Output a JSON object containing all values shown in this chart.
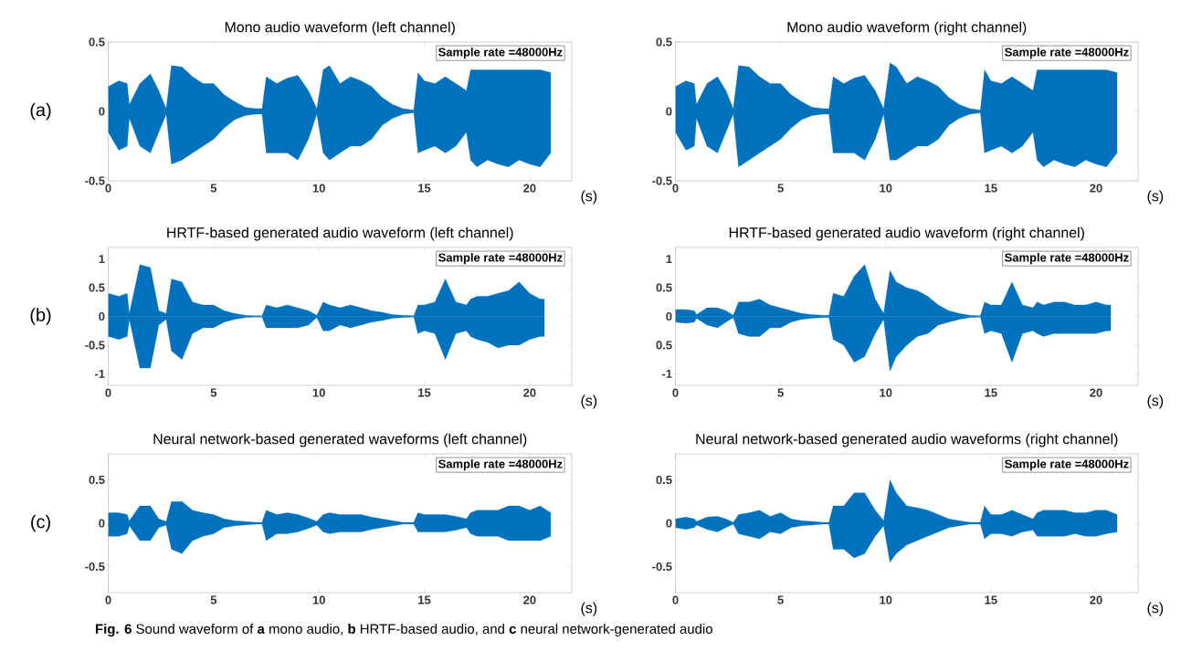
{
  "chart_data": [
    {
      "type": "area",
      "title": "Mono audio waveform (left channel)",
      "xlabel": "(s)",
      "annotations": [
        "Sample rate =48000Hz",
        "(a)"
      ],
      "x": [
        0,
        0.5,
        0.9,
        1,
        1.5,
        2,
        2.4,
        2.75,
        3,
        3.5,
        4,
        4.5,
        5,
        5.5,
        6,
        6.5,
        7,
        7.3,
        7.5,
        8,
        8.5,
        9,
        9.5,
        9.9,
        10.2,
        10.5,
        11,
        11.5,
        12,
        12.5,
        13,
        13.5,
        14,
        14.5,
        14.7,
        15,
        15.5,
        16,
        16.5,
        17,
        17.2,
        17.5,
        18,
        18.5,
        19,
        19.5,
        20,
        20.5,
        21
      ],
      "series": [
        {
          "color": "#0072bd",
          "values": [
            0.18,
            0.22,
            0.2,
            0.05,
            0.2,
            0.27,
            0.15,
            0.02,
            0.33,
            0.32,
            0.25,
            0.2,
            0.2,
            0.12,
            0.07,
            0.03,
            0.02,
            0.02,
            0.25,
            0.2,
            0.24,
            0.26,
            0.15,
            0.02,
            0.3,
            0.33,
            0.2,
            0.25,
            0.22,
            0.18,
            0.1,
            0.05,
            0.02,
            0.01,
            0.28,
            0.22,
            0.2,
            0.25,
            0.2,
            0.15,
            0.3,
            0.3,
            0.3,
            0.3,
            0.3,
            0.3,
            0.3,
            0.3,
            0.28
          ]
        },
        {
          "color": "#0072bd",
          "values": [
            -0.15,
            -0.28,
            -0.25,
            -0.05,
            -0.25,
            -0.3,
            -0.15,
            -0.02,
            -0.38,
            -0.35,
            -0.3,
            -0.25,
            -0.2,
            -0.12,
            -0.06,
            -0.03,
            -0.02,
            -0.02,
            -0.3,
            -0.3,
            -0.3,
            -0.35,
            -0.2,
            -0.02,
            -0.3,
            -0.35,
            -0.3,
            -0.25,
            -0.25,
            -0.2,
            -0.1,
            -0.05,
            -0.02,
            -0.01,
            -0.3,
            -0.28,
            -0.25,
            -0.3,
            -0.25,
            -0.15,
            -0.35,
            -0.4,
            -0.35,
            -0.38,
            -0.4,
            -0.35,
            -0.38,
            -0.4,
            -0.3
          ]
        }
      ],
      "xlim": [
        0,
        22
      ],
      "ylim": [
        -0.5,
        0.5
      ],
      "xticks": [
        0,
        5,
        10,
        15,
        20
      ],
      "yticks": [
        -0.5,
        0,
        0.5
      ]
    },
    {
      "type": "area",
      "title": "Mono audio waveform (right channel)",
      "xlabel": "(s)",
      "annotations": [
        "Sample rate =48000Hz"
      ],
      "x": [
        0,
        0.5,
        0.9,
        1,
        1.5,
        2,
        2.4,
        2.75,
        3,
        3.5,
        4,
        4.5,
        5,
        5.5,
        6,
        6.5,
        7,
        7.3,
        7.5,
        8,
        8.5,
        9,
        9.5,
        9.9,
        10.2,
        10.5,
        11,
        11.5,
        12,
        12.5,
        13,
        13.5,
        14,
        14.5,
        14.7,
        15,
        15.5,
        16,
        16.5,
        17,
        17.2,
        17.5,
        18,
        18.5,
        19,
        19.5,
        20,
        20.5,
        21
      ],
      "series": [
        {
          "color": "#0072bd",
          "values": [
            0.18,
            0.22,
            0.2,
            0.05,
            0.2,
            0.25,
            0.15,
            0.02,
            0.33,
            0.32,
            0.25,
            0.2,
            0.2,
            0.12,
            0.07,
            0.03,
            0.02,
            0.02,
            0.25,
            0.2,
            0.24,
            0.26,
            0.15,
            0.02,
            0.35,
            0.32,
            0.2,
            0.25,
            0.22,
            0.18,
            0.1,
            0.05,
            0.02,
            0.01,
            0.3,
            0.22,
            0.2,
            0.25,
            0.2,
            0.15,
            0.3,
            0.3,
            0.3,
            0.3,
            0.3,
            0.3,
            0.3,
            0.3,
            0.28
          ]
        },
        {
          "color": "#0072bd",
          "values": [
            -0.15,
            -0.28,
            -0.25,
            -0.05,
            -0.25,
            -0.3,
            -0.15,
            -0.02,
            -0.4,
            -0.35,
            -0.3,
            -0.25,
            -0.2,
            -0.12,
            -0.06,
            -0.03,
            -0.02,
            -0.02,
            -0.3,
            -0.3,
            -0.3,
            -0.35,
            -0.2,
            -0.02,
            -0.35,
            -0.35,
            -0.3,
            -0.25,
            -0.25,
            -0.2,
            -0.1,
            -0.05,
            -0.02,
            -0.01,
            -0.3,
            -0.28,
            -0.25,
            -0.3,
            -0.25,
            -0.15,
            -0.35,
            -0.4,
            -0.35,
            -0.38,
            -0.4,
            -0.35,
            -0.38,
            -0.4,
            -0.3
          ]
        }
      ],
      "xlim": [
        0,
        22
      ],
      "ylim": [
        -0.5,
        0.5
      ],
      "xticks": [
        0,
        5,
        10,
        15,
        20
      ],
      "yticks": [
        -0.5,
        0,
        0.5
      ]
    },
    {
      "type": "area",
      "title": "HRTF-based generated audio waveform (left channel)",
      "xlabel": "(s)",
      "annotations": [
        "Sample rate =48000Hz",
        "(b)"
      ],
      "x": [
        0,
        0.5,
        0.9,
        1,
        1.5,
        2,
        2.4,
        2.75,
        3,
        3.5,
        4,
        4.5,
        5,
        5.5,
        6,
        6.5,
        7,
        7.3,
        7.5,
        8,
        8.5,
        9,
        9.5,
        9.9,
        10.2,
        10.5,
        11,
        11.5,
        12,
        12.5,
        13,
        13.5,
        14,
        14.5,
        14.7,
        15,
        15.5,
        16,
        16.5,
        17,
        17.2,
        17.5,
        18,
        18.5,
        19,
        19.5,
        20,
        20.5,
        20.7
      ],
      "series": [
        {
          "color": "#0072bd",
          "values": [
            0.4,
            0.35,
            0.4,
            0.05,
            0.9,
            0.85,
            0.1,
            0.05,
            0.65,
            0.6,
            0.25,
            0.2,
            0.2,
            0.1,
            0.05,
            0.02,
            0.01,
            0.01,
            0.2,
            0.15,
            0.2,
            0.15,
            0.1,
            0.02,
            0.25,
            0.2,
            0.15,
            0.2,
            0.15,
            0.1,
            0.07,
            0.03,
            0.02,
            0.01,
            0.2,
            0.2,
            0.25,
            0.65,
            0.25,
            0.2,
            0.3,
            0.35,
            0.35,
            0.4,
            0.45,
            0.6,
            0.4,
            0.3,
            0.3
          ]
        },
        {
          "color": "#0072bd",
          "values": [
            -0.35,
            -0.4,
            -0.35,
            -0.05,
            -0.9,
            -0.9,
            -0.15,
            -0.05,
            -0.6,
            -0.75,
            -0.3,
            -0.2,
            -0.2,
            -0.1,
            -0.05,
            -0.02,
            -0.01,
            -0.01,
            -0.2,
            -0.2,
            -0.2,
            -0.2,
            -0.15,
            -0.02,
            -0.25,
            -0.25,
            -0.15,
            -0.2,
            -0.15,
            -0.1,
            -0.07,
            -0.03,
            -0.02,
            -0.01,
            -0.3,
            -0.25,
            -0.3,
            -0.75,
            -0.3,
            -0.25,
            -0.35,
            -0.4,
            -0.45,
            -0.55,
            -0.5,
            -0.5,
            -0.4,
            -0.35,
            -0.35
          ]
        }
      ],
      "xlim": [
        0,
        22
      ],
      "ylim": [
        -1.2,
        1.2
      ],
      "xticks": [
        0,
        5,
        10,
        15,
        20
      ],
      "yticks": [
        -1,
        -0.5,
        0,
        0.5,
        1
      ]
    },
    {
      "type": "area",
      "title": "HRTF-based generated audio waveform (right channel)",
      "xlabel": "(s)",
      "annotations": [
        "Sample rate =48000Hz"
      ],
      "x": [
        0,
        0.5,
        0.9,
        1,
        1.5,
        2,
        2.4,
        2.75,
        3,
        3.5,
        4,
        4.5,
        5,
        5.5,
        6,
        6.5,
        7,
        7.3,
        7.5,
        8,
        8.5,
        9,
        9.5,
        9.9,
        10.2,
        10.5,
        11,
        11.5,
        12,
        12.5,
        13,
        13.5,
        14,
        14.5,
        14.7,
        15,
        15.5,
        16,
        16.5,
        17,
        17.2,
        17.5,
        18,
        18.5,
        19,
        19.5,
        20,
        20.5,
        20.7
      ],
      "series": [
        {
          "color": "#0072bd",
          "values": [
            0.12,
            0.12,
            0.1,
            0.03,
            0.15,
            0.15,
            0.1,
            0.02,
            0.25,
            0.25,
            0.3,
            0.2,
            0.15,
            0.1,
            0.05,
            0.03,
            0.02,
            0.02,
            0.4,
            0.35,
            0.7,
            0.9,
            0.3,
            0.05,
            0.8,
            0.6,
            0.5,
            0.45,
            0.35,
            0.2,
            0.1,
            0.05,
            0.02,
            0.01,
            0.25,
            0.2,
            0.2,
            0.6,
            0.2,
            0.15,
            0.25,
            0.2,
            0.25,
            0.25,
            0.2,
            0.2,
            0.25,
            0.2,
            0.2
          ]
        },
        {
          "color": "#0072bd",
          "values": [
            -0.1,
            -0.12,
            -0.1,
            -0.03,
            -0.15,
            -0.2,
            -0.1,
            -0.02,
            -0.3,
            -0.35,
            -0.35,
            -0.2,
            -0.2,
            -0.1,
            -0.05,
            -0.03,
            -0.02,
            -0.02,
            -0.4,
            -0.5,
            -0.8,
            -0.7,
            -0.3,
            -0.05,
            -0.95,
            -0.7,
            -0.5,
            -0.35,
            -0.3,
            -0.15,
            -0.1,
            -0.05,
            -0.02,
            -0.01,
            -0.3,
            -0.25,
            -0.3,
            -0.8,
            -0.3,
            -0.25,
            -0.3,
            -0.35,
            -0.3,
            -0.3,
            -0.3,
            -0.3,
            -0.3,
            -0.25,
            -0.25
          ]
        }
      ],
      "xlim": [
        0,
        22
      ],
      "ylim": [
        -1.2,
        1.2
      ],
      "xticks": [
        0,
        5,
        10,
        15,
        20
      ],
      "yticks": [
        -1,
        {
          "value": -0.5,
          "label": "0.5"
        },
        0,
        0.5,
        1
      ]
    },
    {
      "type": "area",
      "title": "Neural network-based generated waveforms (left channel)",
      "xlabel": "(s)",
      "annotations": [
        "Sample rate =48000Hz",
        "(c)",
        "**Fig. 6** Sound waveform of **a** mono audio, **b** HRTF-based audio, and **c** neural network-generated audio"
      ],
      "x": [
        0,
        0.5,
        0.9,
        1,
        1.5,
        2,
        2.4,
        2.75,
        3,
        3.5,
        4,
        4.5,
        5,
        5.5,
        6,
        6.5,
        7,
        7.3,
        7.5,
        8,
        8.5,
        9,
        9.5,
        9.9,
        10.2,
        10.5,
        11,
        11.5,
        12,
        12.5,
        13,
        13.5,
        14,
        14.5,
        14.7,
        15,
        15.5,
        16,
        16.5,
        17,
        17.2,
        17.5,
        18,
        18.5,
        19,
        19.5,
        20,
        20.5,
        21
      ],
      "series": [
        {
          "color": "#0072bd",
          "values": [
            0.12,
            0.12,
            0.1,
            0.03,
            0.2,
            0.2,
            0.05,
            0.02,
            0.25,
            0.25,
            0.15,
            0.12,
            0.1,
            0.05,
            0.03,
            0.02,
            0.01,
            0.01,
            0.15,
            0.1,
            0.12,
            0.1,
            0.06,
            0.02,
            0.1,
            0.12,
            0.1,
            0.1,
            0.1,
            0.07,
            0.05,
            0.03,
            0.01,
            0.01,
            0.12,
            0.1,
            0.1,
            0.1,
            0.08,
            0.05,
            0.12,
            0.15,
            0.15,
            0.15,
            0.2,
            0.2,
            0.15,
            0.2,
            0.12
          ]
        },
        {
          "color": "#0072bd",
          "values": [
            -0.15,
            -0.15,
            -0.12,
            -0.03,
            -0.2,
            -0.2,
            -0.05,
            -0.02,
            -0.3,
            -0.35,
            -0.2,
            -0.15,
            -0.12,
            -0.05,
            -0.03,
            -0.02,
            -0.01,
            -0.01,
            -0.2,
            -0.12,
            -0.12,
            -0.1,
            -0.06,
            -0.02,
            -0.1,
            -0.12,
            -0.1,
            -0.1,
            -0.1,
            -0.07,
            -0.05,
            -0.03,
            -0.01,
            -0.01,
            -0.1,
            -0.1,
            -0.1,
            -0.1,
            -0.08,
            -0.05,
            -0.12,
            -0.15,
            -0.15,
            -0.15,
            -0.2,
            -0.2,
            -0.2,
            -0.2,
            -0.15
          ]
        }
      ],
      "xlim": [
        0,
        22
      ],
      "ylim": [
        -0.8,
        0.8
      ],
      "xticks": [
        0,
        5,
        10,
        15,
        20
      ],
      "yticks": [
        -0.5,
        0,
        0.5
      ]
    },
    {
      "type": "area",
      "title": "Neural network-based generated audio waveforms (right channel)",
      "xlabel": "(s)",
      "annotations": [
        "Sample rate =48000Hz"
      ],
      "x": [
        0,
        0.5,
        0.9,
        1,
        1.5,
        2,
        2.4,
        2.75,
        3,
        3.5,
        4,
        4.5,
        5,
        5.5,
        6,
        6.5,
        7,
        7.3,
        7.5,
        8,
        8.5,
        9,
        9.5,
        9.9,
        10.2,
        10.5,
        11,
        11.5,
        12,
        12.5,
        13,
        13.5,
        14,
        14.5,
        14.7,
        15,
        15.5,
        16,
        16.5,
        17,
        17.2,
        17.5,
        18,
        18.5,
        19,
        19.5,
        20,
        20.5,
        21
      ],
      "series": [
        {
          "color": "#0072bd",
          "values": [
            0.05,
            0.07,
            0.05,
            0.02,
            0.07,
            0.08,
            0.05,
            0.01,
            0.1,
            0.12,
            0.15,
            0.08,
            0.12,
            0.05,
            0.03,
            0.02,
            0.01,
            0.01,
            0.2,
            0.2,
            0.35,
            0.35,
            0.15,
            0.03,
            0.5,
            0.35,
            0.2,
            0.18,
            0.15,
            0.1,
            0.05,
            0.03,
            0.01,
            0.01,
            0.2,
            0.1,
            0.1,
            0.15,
            0.1,
            0.05,
            0.12,
            0.15,
            0.15,
            0.15,
            0.12,
            0.12,
            0.15,
            0.15,
            0.1
          ]
        },
        {
          "color": "#0072bd",
          "values": [
            -0.05,
            -0.07,
            -0.05,
            -0.02,
            -0.07,
            -0.1,
            -0.05,
            -0.01,
            -0.12,
            -0.15,
            -0.18,
            -0.1,
            -0.12,
            -0.05,
            -0.03,
            -0.02,
            -0.01,
            -0.01,
            -0.3,
            -0.3,
            -0.4,
            -0.35,
            -0.15,
            -0.03,
            -0.45,
            -0.35,
            -0.25,
            -0.2,
            -0.15,
            -0.1,
            -0.05,
            -0.03,
            -0.01,
            -0.01,
            -0.18,
            -0.12,
            -0.12,
            -0.15,
            -0.1,
            -0.08,
            -0.15,
            -0.15,
            -0.15,
            -0.15,
            -0.12,
            -0.15,
            -0.15,
            -0.12,
            -0.1
          ]
        }
      ],
      "xlim": [
        0,
        22
      ],
      "ylim": [
        -0.8,
        0.8
      ],
      "xticks": [
        0,
        5,
        10,
        15,
        20
      ],
      "yticks": [
        -0.5,
        0,
        0.5
      ]
    }
  ]
}
